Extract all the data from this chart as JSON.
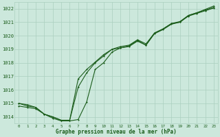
{
  "title": "Graphe pression niveau de la mer (hPa)",
  "bg_color": "#cce8dc",
  "grid_color": "#aacfbf",
  "line_color": "#1a5c1a",
  "x_min": 0,
  "x_max": 23,
  "y_min": 1013.5,
  "y_max": 1022.5,
  "y_ticks": [
    1014,
    1015,
    1016,
    1017,
    1018,
    1019,
    1020,
    1021,
    1022
  ],
  "x_ticks": [
    0,
    1,
    2,
    3,
    4,
    5,
    6,
    7,
    8,
    9,
    10,
    11,
    12,
    13,
    14,
    15,
    16,
    17,
    18,
    19,
    20,
    21,
    22,
    23
  ],
  "series1": [
    1014.8,
    1014.7,
    1014.6,
    1014.2,
    1013.9,
    1013.7,
    1013.7,
    1013.8,
    1015.1,
    1017.5,
    1018.0,
    1018.8,
    1019.1,
    1019.2,
    1019.6,
    1019.3,
    1020.2,
    1020.5,
    1020.9,
    1021.0,
    1021.5,
    1021.7,
    1021.9,
    1022.1
  ],
  "series2": [
    1015.0,
    1014.8,
    1014.7,
    1014.2,
    1014.0,
    1013.75,
    1013.75,
    1016.2,
    1017.25,
    1018.0,
    1018.5,
    1019.0,
    1019.1,
    1019.25,
    1019.65,
    1019.3,
    1020.15,
    1020.45,
    1020.85,
    1021.0,
    1021.45,
    1021.65,
    1021.85,
    1022.05
  ],
  "series3": [
    1015.0,
    1014.9,
    1014.7,
    1014.2,
    1014.0,
    1013.75,
    1013.75,
    1016.8,
    1017.5,
    1018.05,
    1018.6,
    1019.0,
    1019.2,
    1019.3,
    1019.7,
    1019.4,
    1020.2,
    1020.5,
    1020.9,
    1021.05,
    1021.5,
    1021.7,
    1021.95,
    1022.2
  ]
}
